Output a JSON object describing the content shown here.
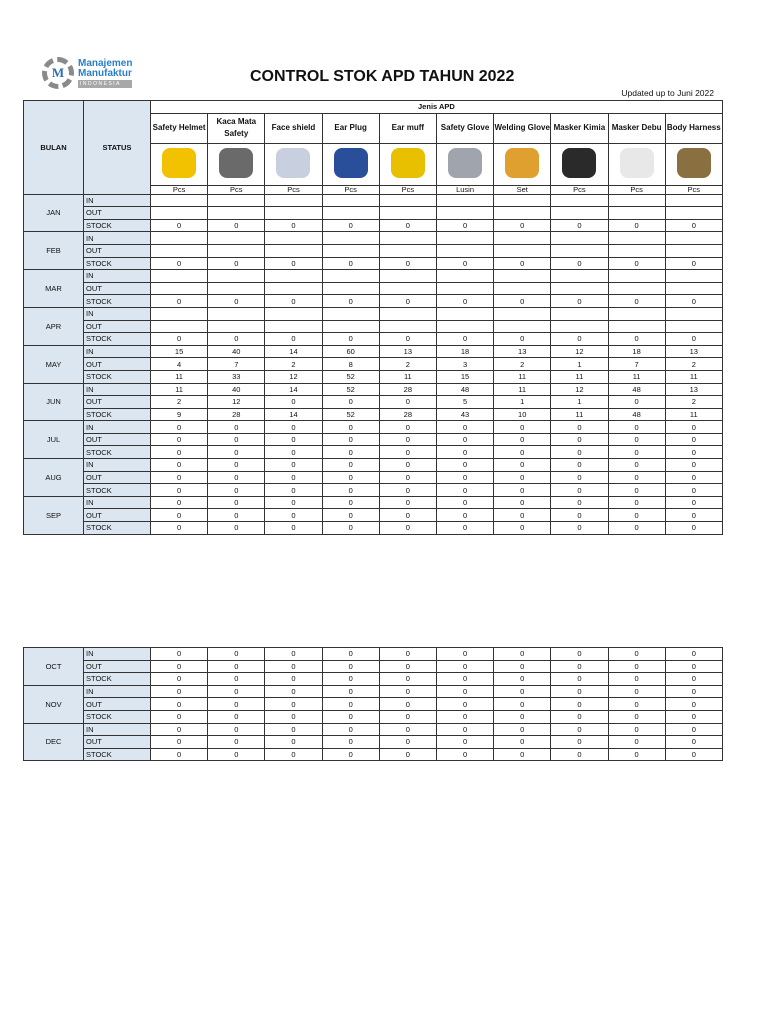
{
  "logo": {
    "line1": "Manajemen",
    "line2": "Manufaktur",
    "line3": "INDONESIA"
  },
  "title": "CONTROL STOK APD  TAHUN 2022",
  "updated": "Updated up to Juni 2022",
  "headers": {
    "bulan": "BULAN",
    "status": "STATUS",
    "group": "Jenis APD"
  },
  "items": [
    {
      "name": "Safety Helmet",
      "unit": "Pcs",
      "icon": "helmet-icon",
      "color": "#f2c200"
    },
    {
      "name": "Kaca Mata Safety",
      "unit": "Pcs",
      "icon": "glasses-icon",
      "color": "#6a6a6a"
    },
    {
      "name": "Face shield",
      "unit": "Pcs",
      "icon": "face-shield-icon",
      "color": "#c8d0e0"
    },
    {
      "name": "Ear Plug",
      "unit": "Pcs",
      "icon": "ear-plug-icon",
      "color": "#2a4f9a"
    },
    {
      "name": "Ear muff",
      "unit": "Pcs",
      "icon": "ear-muff-icon",
      "color": "#e8c000"
    },
    {
      "name": "Safety Glove",
      "unit": "Lusin",
      "icon": "glove-icon",
      "color": "#a0a4ac"
    },
    {
      "name": "Welding Glove",
      "unit": "Set",
      "icon": "welding-glove-icon",
      "color": "#e0a030"
    },
    {
      "name": "Masker Kimia",
      "unit": "Pcs",
      "icon": "respirator-icon",
      "color": "#2a2a2a"
    },
    {
      "name": "Masker Debu",
      "unit": "Pcs",
      "icon": "dust-mask-icon",
      "color": "#e8e8e8"
    },
    {
      "name": "Body Harness",
      "unit": "Pcs",
      "icon": "harness-icon",
      "color": "#8a7040"
    }
  ],
  "months": [
    {
      "name": "JAN",
      "rows": [
        [
          "IN",
          []
        ],
        [
          "OUT",
          []
        ],
        [
          "STOCK",
          [
            "0",
            "0",
            "0",
            "0",
            "0",
            "0",
            "0",
            "0",
            "0",
            "0"
          ]
        ]
      ]
    },
    {
      "name": "FEB",
      "rows": [
        [
          "IN",
          []
        ],
        [
          "OUT",
          []
        ],
        [
          "STOCK",
          [
            "0",
            "0",
            "0",
            "0",
            "0",
            "0",
            "0",
            "0",
            "0",
            "0"
          ]
        ]
      ]
    },
    {
      "name": "MAR",
      "rows": [
        [
          "IN",
          []
        ],
        [
          "OUT",
          []
        ],
        [
          "STOCK",
          [
            "0",
            "0",
            "0",
            "0",
            "0",
            "0",
            "0",
            "0",
            "0",
            "0"
          ]
        ]
      ]
    },
    {
      "name": "APR",
      "rows": [
        [
          "IN",
          []
        ],
        [
          "OUT",
          []
        ],
        [
          "STOCK",
          [
            "0",
            "0",
            "0",
            "0",
            "0",
            "0",
            "0",
            "0",
            "0",
            "0"
          ]
        ]
      ]
    },
    {
      "name": "MAY",
      "rows": [
        [
          "IN",
          [
            "15",
            "40",
            "14",
            "60",
            "13",
            "18",
            "13",
            "12",
            "18",
            "13"
          ]
        ],
        [
          "OUT",
          [
            "4",
            "7",
            "2",
            "8",
            "2",
            "3",
            "2",
            "1",
            "7",
            "2"
          ]
        ],
        [
          "STOCK",
          [
            "11",
            "33",
            "12",
            "52",
            "11",
            "15",
            "11",
            "11",
            "11",
            "11"
          ]
        ]
      ]
    },
    {
      "name": "JUN",
      "rows": [
        [
          "IN",
          [
            "11",
            "40",
            "14",
            "52",
            "28",
            "48",
            "11",
            "12",
            "48",
            "13"
          ]
        ],
        [
          "OUT",
          [
            "2",
            "12",
            "0",
            "0",
            "0",
            "5",
            "1",
            "1",
            "0",
            "2"
          ]
        ],
        [
          "STOCK",
          [
            "9",
            "28",
            "14",
            "52",
            "28",
            "43",
            "10",
            "11",
            "48",
            "11"
          ]
        ]
      ]
    },
    {
      "name": "JUL",
      "rows": [
        [
          "IN",
          [
            "0",
            "0",
            "0",
            "0",
            "0",
            "0",
            "0",
            "0",
            "0",
            "0"
          ]
        ],
        [
          "OUT",
          [
            "0",
            "0",
            "0",
            "0",
            "0",
            "0",
            "0",
            "0",
            "0",
            "0"
          ]
        ],
        [
          "STOCK",
          [
            "0",
            "0",
            "0",
            "0",
            "0",
            "0",
            "0",
            "0",
            "0",
            "0"
          ]
        ]
      ]
    },
    {
      "name": "AUG",
      "rows": [
        [
          "IN",
          [
            "0",
            "0",
            "0",
            "0",
            "0",
            "0",
            "0",
            "0",
            "0",
            "0"
          ]
        ],
        [
          "OUT",
          [
            "0",
            "0",
            "0",
            "0",
            "0",
            "0",
            "0",
            "0",
            "0",
            "0"
          ]
        ],
        [
          "STOCK",
          [
            "0",
            "0",
            "0",
            "0",
            "0",
            "0",
            "0",
            "0",
            "0",
            "0"
          ]
        ]
      ]
    },
    {
      "name": "SEP",
      "rows": [
        [
          "IN",
          [
            "0",
            "0",
            "0",
            "0",
            "0",
            "0",
            "0",
            "0",
            "0",
            "0"
          ]
        ],
        [
          "OUT",
          [
            "0",
            "0",
            "0",
            "0",
            "0",
            "0",
            "0",
            "0",
            "0",
            "0"
          ]
        ],
        [
          "STOCK",
          [
            "0",
            "0",
            "0",
            "0",
            "0",
            "0",
            "0",
            "0",
            "0",
            "0"
          ]
        ]
      ]
    }
  ],
  "months2": [
    {
      "name": "OCT",
      "rows": [
        [
          "IN",
          [
            "0",
            "0",
            "0",
            "0",
            "0",
            "0",
            "0",
            "0",
            "0",
            "0"
          ]
        ],
        [
          "OUT",
          [
            "0",
            "0",
            "0",
            "0",
            "0",
            "0",
            "0",
            "0",
            "0",
            "0"
          ]
        ],
        [
          "STOCK",
          [
            "0",
            "0",
            "0",
            "0",
            "0",
            "0",
            "0",
            "0",
            "0",
            "0"
          ]
        ]
      ]
    },
    {
      "name": "NOV",
      "rows": [
        [
          "IN",
          [
            "0",
            "0",
            "0",
            "0",
            "0",
            "0",
            "0",
            "0",
            "0",
            "0"
          ]
        ],
        [
          "OUT",
          [
            "0",
            "0",
            "0",
            "0",
            "0",
            "0",
            "0",
            "0",
            "0",
            "0"
          ]
        ],
        [
          "STOCK",
          [
            "0",
            "0",
            "0",
            "0",
            "0",
            "0",
            "0",
            "0",
            "0",
            "0"
          ]
        ]
      ]
    },
    {
      "name": "DEC",
      "rows": [
        [
          "IN",
          [
            "0",
            "0",
            "0",
            "0",
            "0",
            "0",
            "0",
            "0",
            "0",
            "0"
          ]
        ],
        [
          "OUT",
          [
            "0",
            "0",
            "0",
            "0",
            "0",
            "0",
            "0",
            "0",
            "0",
            "0"
          ]
        ],
        [
          "STOCK",
          [
            "0",
            "0",
            "0",
            "0",
            "0",
            "0",
            "0",
            "0",
            "0",
            "0"
          ]
        ]
      ]
    }
  ]
}
